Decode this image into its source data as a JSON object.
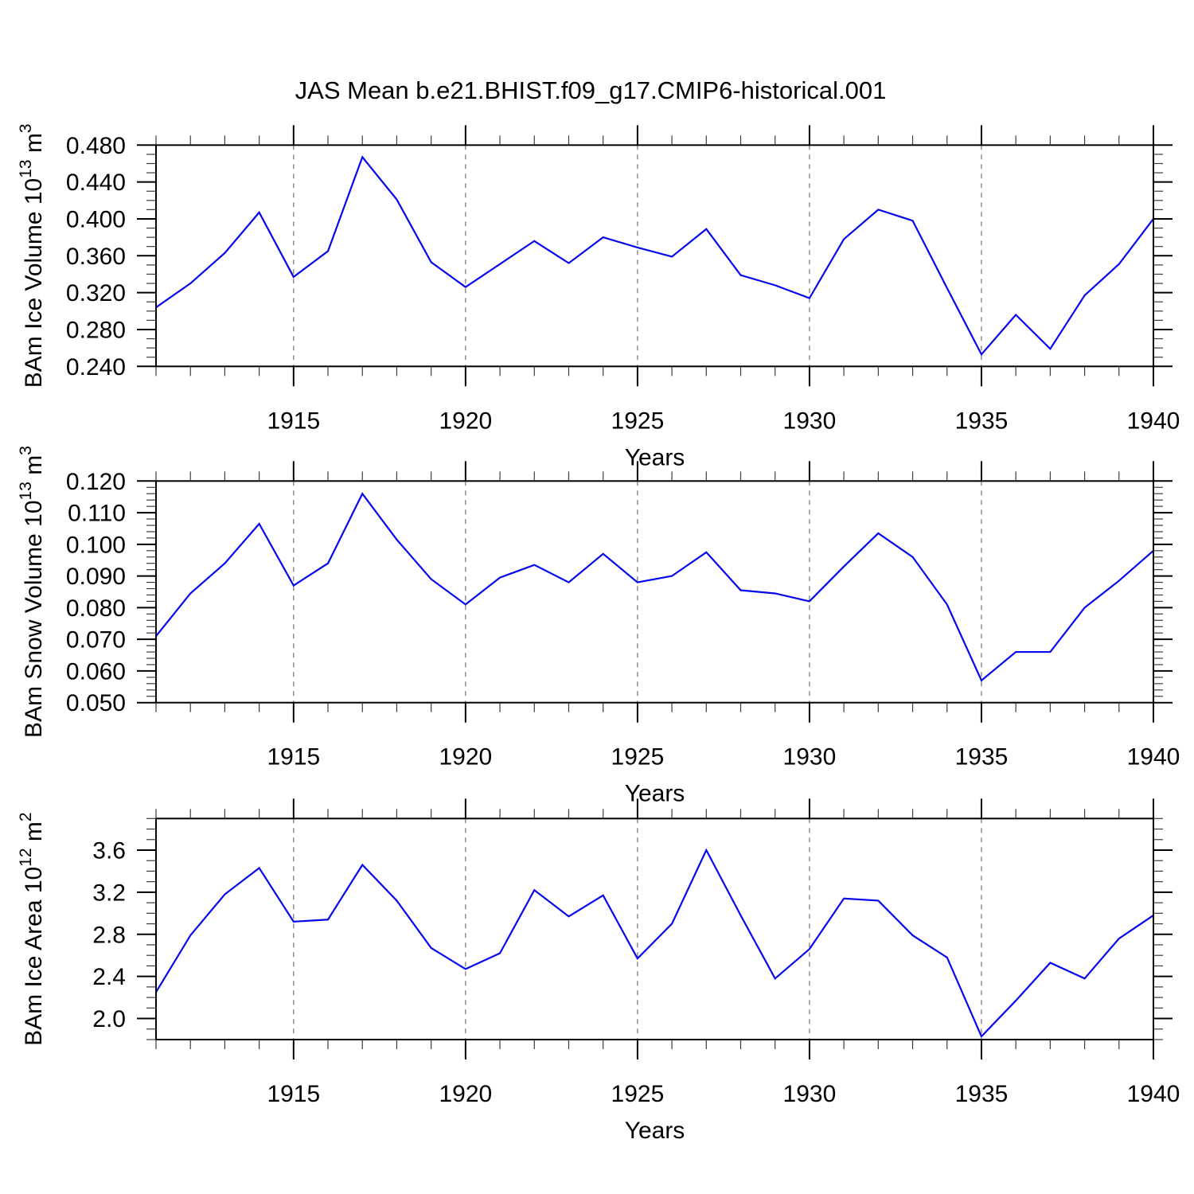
{
  "page": {
    "background": "#ffffff"
  },
  "header": {
    "title": "JAS Mean b.e21.BHIST.f09_g17.CMIP6-historical.001"
  },
  "style": {
    "series_color": "#0606ee",
    "grid_color": "#848484",
    "axis_color": "#000000",
    "minor_tick_color": "#3c3c3c",
    "text_color": "#000000"
  },
  "chart_data": [
    {
      "type": "line",
      "name": "ice-volume",
      "xlabel": "Years",
      "ylabel": "BAm Ice Volume 10^13 m^3",
      "ylabel_parts": [
        {
          "t": "BAm Ice Volume 10"
        },
        {
          "t": "13",
          "sup": true
        },
        {
          "t": " m"
        },
        {
          "t": "3",
          "sup": true
        }
      ],
      "x": [
        1911,
        1912,
        1913,
        1914,
        1915,
        1916,
        1917,
        1918,
        1919,
        1920,
        1921,
        1922,
        1923,
        1924,
        1925,
        1926,
        1927,
        1928,
        1929,
        1930,
        1931,
        1932,
        1933,
        1934,
        1935,
        1936,
        1937,
        1938,
        1939,
        1940
      ],
      "values": [
        0.304,
        0.33,
        0.363,
        0.407,
        0.337,
        0.365,
        0.467,
        0.421,
        0.353,
        0.326,
        0.351,
        0.376,
        0.352,
        0.38,
        0.369,
        0.359,
        0.389,
        0.339,
        0.328,
        0.314,
        0.378,
        0.41,
        0.398,
        0.325,
        0.253,
        0.296,
        0.259,
        0.317,
        0.351,
        0.4
      ],
      "xlim": [
        1911,
        1940
      ],
      "ylim": [
        0.24,
        0.48
      ],
      "xticks": [
        1915,
        1920,
        1925,
        1930,
        1935,
        1940
      ],
      "xtick_labels": [
        "1915",
        "1920",
        "1925",
        "1930",
        "1935",
        "1940"
      ],
      "xtick_minor_step": 1,
      "yticks": [
        0.24,
        0.28,
        0.32,
        0.36,
        0.4,
        0.44,
        0.48
      ],
      "ytick_labels": [
        "0.240",
        "0.280",
        "0.320",
        "0.360",
        "0.400",
        "0.440",
        "0.480"
      ],
      "ytick_minor_step": 0.01,
      "grid": "vertical dashed lines at major x ticks (except axis edges)"
    },
    {
      "type": "line",
      "name": "snow-volume",
      "xlabel": "Years",
      "ylabel": "BAm Snow Volume 10^13 m^3",
      "ylabel_parts": [
        {
          "t": "BAm Snow Volume 10"
        },
        {
          "t": "13",
          "sup": true
        },
        {
          "t": " m"
        },
        {
          "t": "3",
          "sup": true
        }
      ],
      "x": [
        1911,
        1912,
        1913,
        1914,
        1915,
        1916,
        1917,
        1918,
        1919,
        1920,
        1921,
        1922,
        1923,
        1924,
        1925,
        1926,
        1927,
        1928,
        1929,
        1930,
        1931,
        1932,
        1933,
        1934,
        1935,
        1936,
        1937,
        1938,
        1939,
        1940
      ],
      "values": [
        0.071,
        0.0845,
        0.094,
        0.1065,
        0.087,
        0.094,
        0.116,
        0.1015,
        0.089,
        0.081,
        0.0895,
        0.0935,
        0.088,
        0.097,
        0.088,
        0.09,
        0.0975,
        0.0855,
        0.0845,
        0.082,
        0.093,
        0.1035,
        0.096,
        0.081,
        0.057,
        0.066,
        0.066,
        0.08,
        0.0885,
        0.098
      ],
      "xlim": [
        1911,
        1940
      ],
      "ylim": [
        0.05,
        0.12
      ],
      "xticks": [
        1915,
        1920,
        1925,
        1930,
        1935,
        1940
      ],
      "xtick_labels": [
        "1915",
        "1920",
        "1925",
        "1930",
        "1935",
        "1940"
      ],
      "xtick_minor_step": 1,
      "yticks": [
        0.05,
        0.06,
        0.07,
        0.08,
        0.09,
        0.1,
        0.11,
        0.12
      ],
      "ytick_labels": [
        "0.050",
        "0.060",
        "0.070",
        "0.080",
        "0.090",
        "0.100",
        "0.110",
        "0.120"
      ],
      "ytick_minor_step": 0.002,
      "grid": "vertical dashed lines at major x ticks (except axis edges)"
    },
    {
      "type": "line",
      "name": "ice-area",
      "xlabel": "Years",
      "ylabel": "BAm Ice Area 10^12 m^2",
      "ylabel_parts": [
        {
          "t": "BAm Ice Area 10"
        },
        {
          "t": "12",
          "sup": true
        },
        {
          "t": " m"
        },
        {
          "t": "2",
          "sup": true
        }
      ],
      "x": [
        1911,
        1912,
        1913,
        1914,
        1915,
        1916,
        1917,
        1918,
        1919,
        1920,
        1921,
        1922,
        1923,
        1924,
        1925,
        1926,
        1927,
        1928,
        1929,
        1930,
        1931,
        1932,
        1933,
        1934,
        1935,
        1936,
        1937,
        1938,
        1939,
        1940
      ],
      "values": [
        2.25,
        2.79,
        3.18,
        3.43,
        2.92,
        2.94,
        3.46,
        3.12,
        2.67,
        2.47,
        2.62,
        3.22,
        2.97,
        3.17,
        2.57,
        2.9,
        3.6,
        2.98,
        2.38,
        2.66,
        3.14,
        3.12,
        2.79,
        2.58,
        1.83,
        2.17,
        2.53,
        2.38,
        2.76,
        2.98
      ],
      "xlim": [
        1911,
        1940
      ],
      "ylim": [
        1.8,
        3.9
      ],
      "xticks": [
        1915,
        1920,
        1925,
        1930,
        1935,
        1940
      ],
      "xtick_labels": [
        "1915",
        "1920",
        "1925",
        "1930",
        "1935",
        "1940"
      ],
      "xtick_minor_step": 1,
      "yticks": [
        2.0,
        2.4,
        2.8,
        3.2,
        3.6
      ],
      "ytick_labels": [
        "2.0",
        "2.4",
        "2.8",
        "3.2",
        "3.6"
      ],
      "ytick_minor_step": 0.1,
      "grid": "vertical dashed lines at major x ticks (except axis edges)"
    }
  ]
}
